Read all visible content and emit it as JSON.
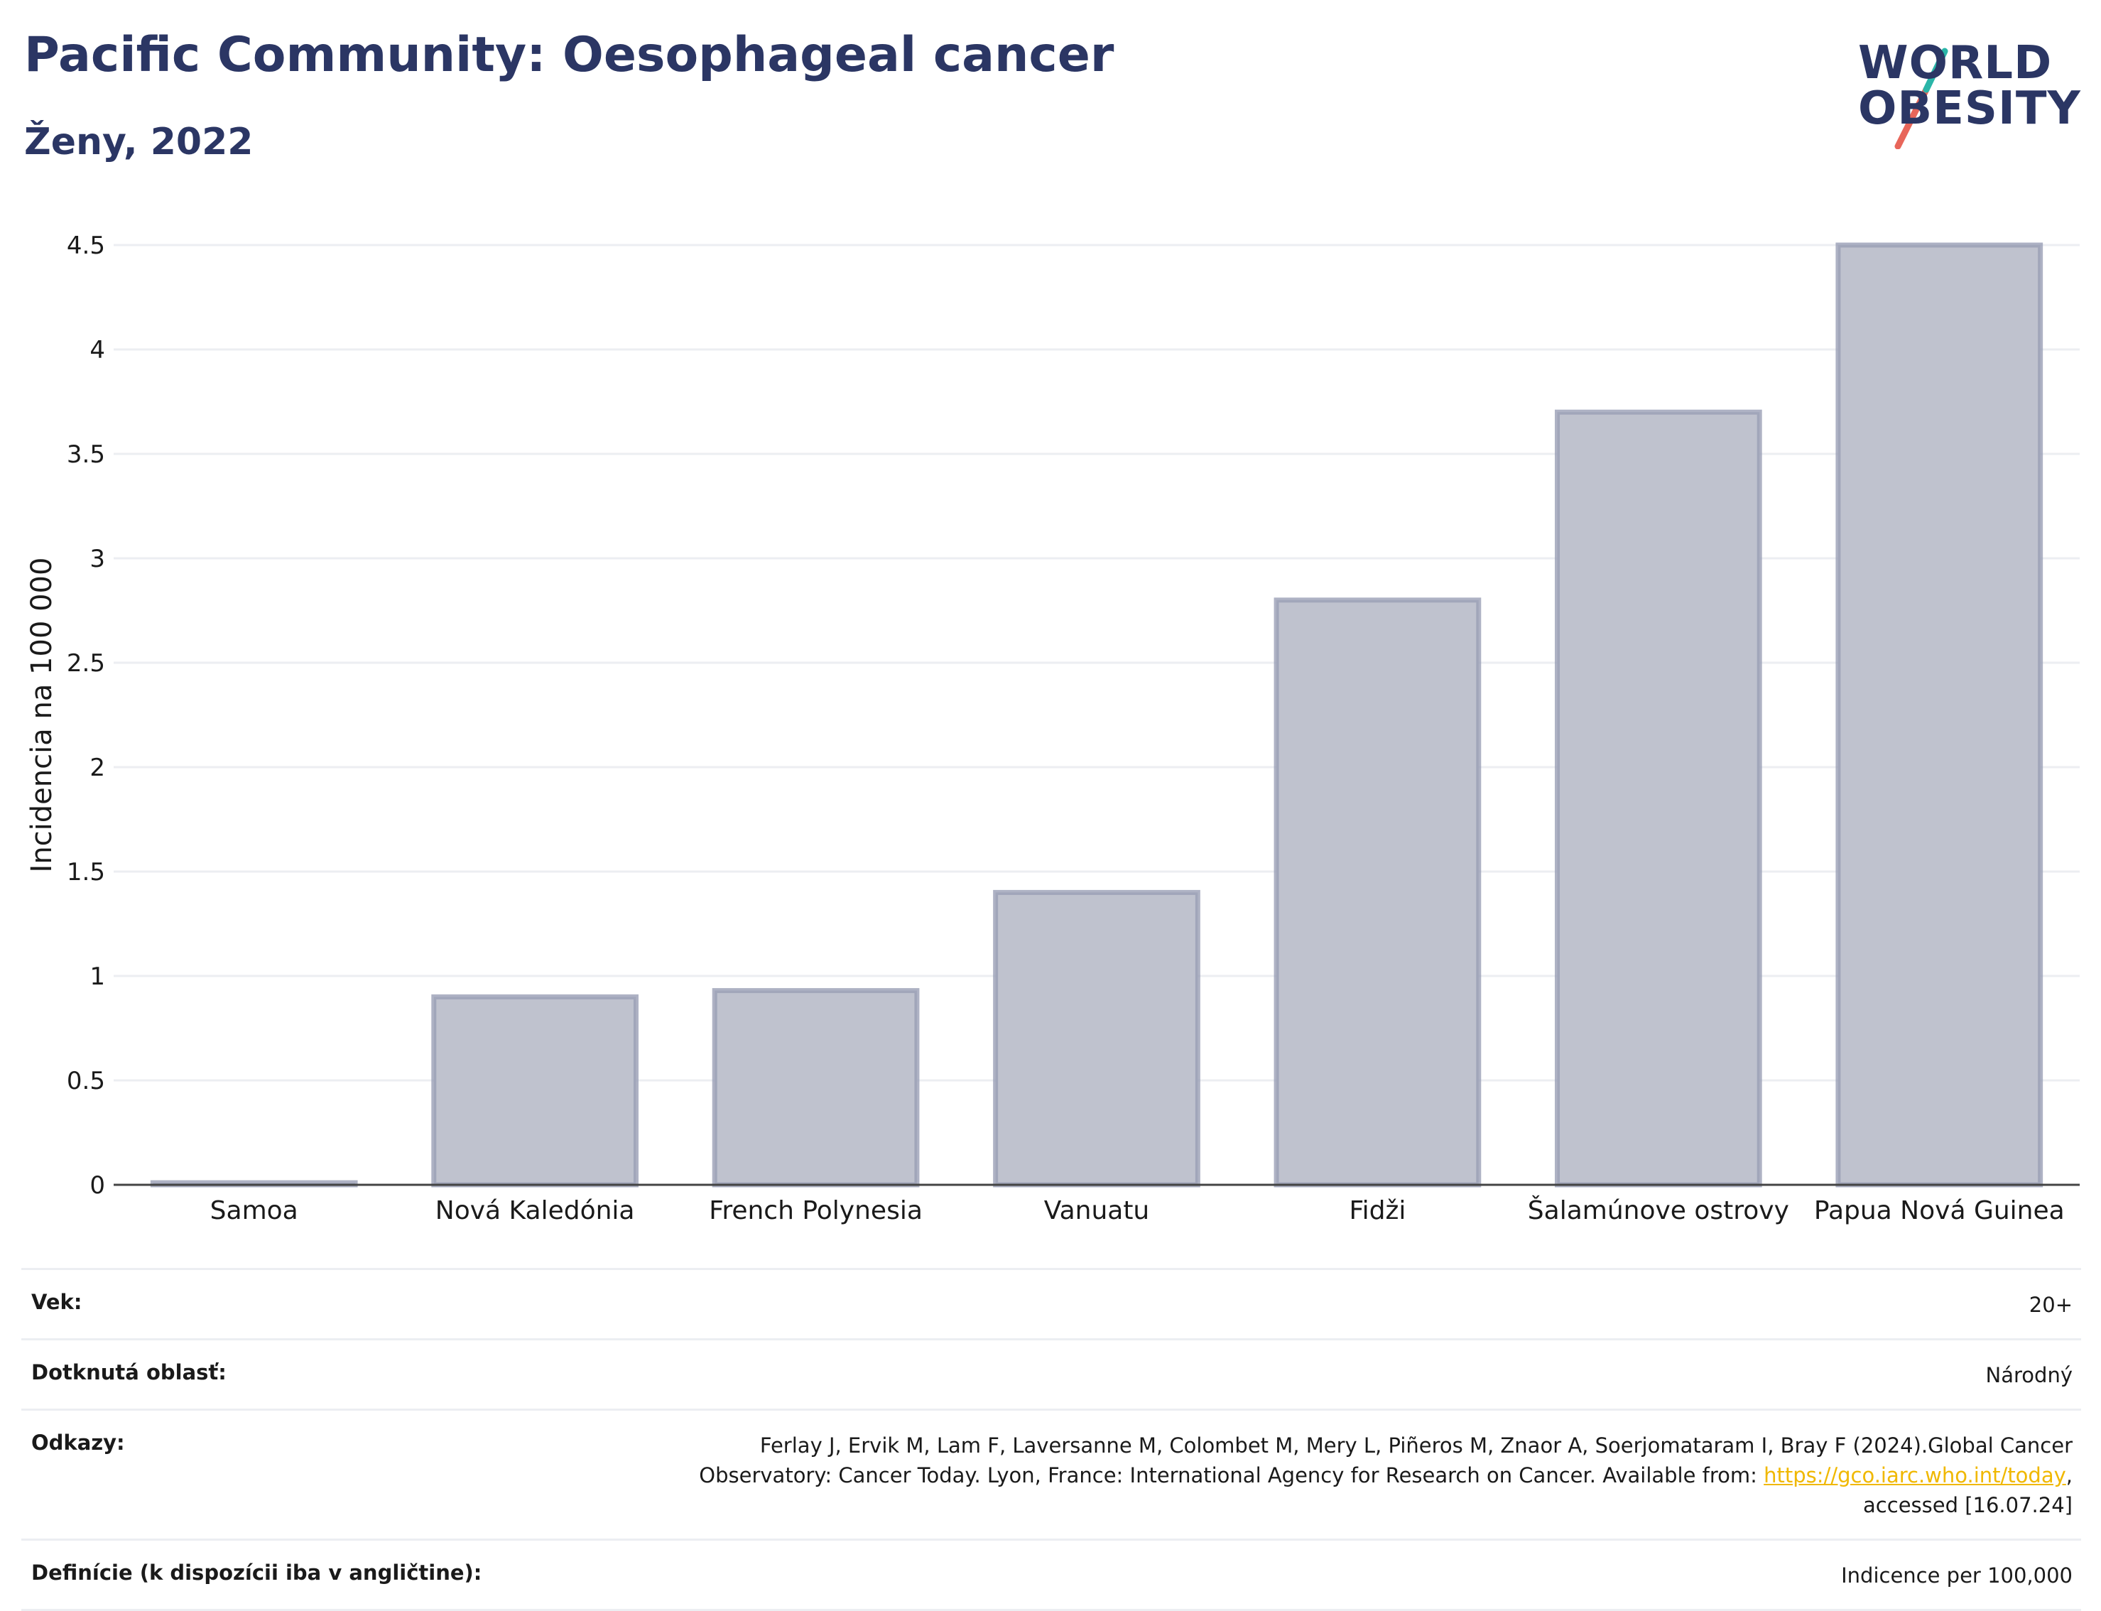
{
  "header": {
    "title": "Pacific Community: Oesophageal cancer",
    "subtitle": "Ženy, 2022"
  },
  "logo": {
    "line1": "WORLD",
    "line2": "OBESITY",
    "colors": {
      "text": "#2b3664",
      "slash_top": "#2ab5a8",
      "slash_bottom": "#e8665a"
    }
  },
  "chart_data": {
    "type": "bar",
    "categories": [
      "Samoa",
      "Nová Kaledónia",
      "French Polynesia",
      "Vanuatu",
      "Fidži",
      "Šalamúnove ostrovy",
      "Papua Nová Guinea"
    ],
    "values": [
      0.01,
      0.9,
      0.93,
      1.4,
      2.8,
      3.7,
      4.5
    ],
    "ylabel": "Incidencia na 100 000",
    "ylim": [
      0,
      4.5
    ],
    "yticks": [
      0,
      0.5,
      1,
      1.5,
      2,
      2.5,
      3,
      3.5,
      4,
      4.5
    ],
    "ytick_labels": [
      "0",
      "0.5",
      "1",
      "1.5",
      "2",
      "2.5",
      "3",
      "3.5",
      "4",
      "4.5"
    ],
    "grid": true,
    "colors": {
      "bar_fill": "#bfc2ce",
      "bar_stroke": "#9a9fb5",
      "grid": "#eceef2",
      "axis": "#444444"
    }
  },
  "info": {
    "rows": [
      {
        "label": "Vek:",
        "value": "20+"
      },
      {
        "label": "Dotknutá oblasť:",
        "value": "Národný"
      },
      {
        "label": "Odkazy:",
        "value_lines": [
          "Ferlay J, Ervik M, Lam F, Laversanne M, Colombet M, Mery L, Piñeros M, Znaor A, Soerjomataram I, Bray F (2024).Global Cancer",
          "Observatory: Cancer Today. Lyon, France: International Agency for Research on Cancer. Available from: ",
          "accessed [16.07.24]"
        ],
        "link_text": "https://gco.iarc.who.int/today",
        "link_suffix": ","
      },
      {
        "label": "Definície (k dispozícii iba v angličtine):",
        "value": "Indicence per 100,000"
      }
    ]
  }
}
